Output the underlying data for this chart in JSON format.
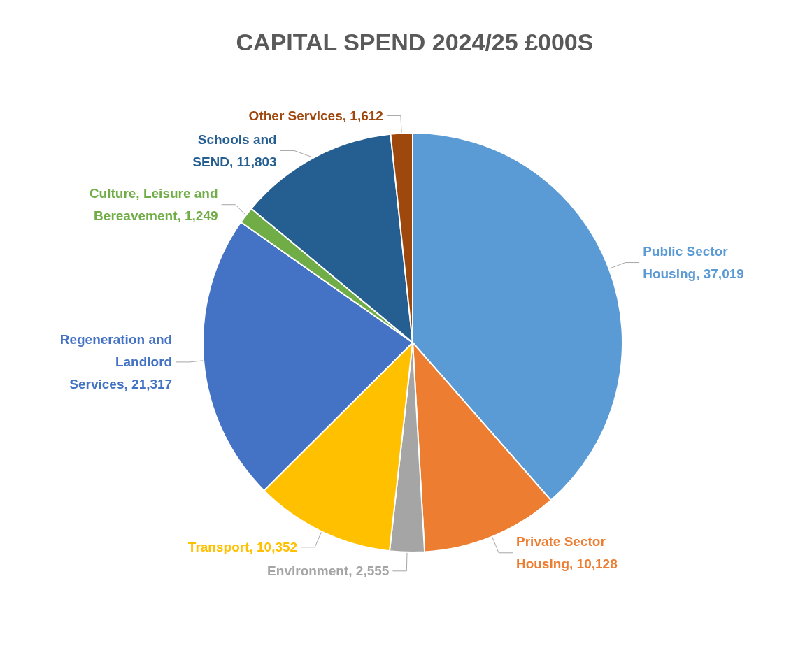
{
  "chart_data": {
    "type": "pie",
    "title": "CAPITAL SPEND 2024/25 £000S",
    "categories": [
      "Public Sector Housing",
      "Private Sector Housing",
      "Environment",
      "Transport",
      "Regeneration and Landlord Services",
      "Culture, Leisure and Bereavement",
      "Schools and SEND",
      "Other Services"
    ],
    "values": [
      37019,
      10128,
      2555,
      10352,
      21317,
      1249,
      11803,
      1612
    ],
    "value_labels": [
      "37,019",
      "10,128",
      "2,555",
      "10,352",
      "21,317",
      "1,249",
      "11,803",
      "1,612"
    ],
    "colors": [
      "#5b9bd5",
      "#ed7d31",
      "#a5a5a5",
      "#ffc000",
      "#4472c4",
      "#70ad47",
      "#255e91",
      "#9e480e"
    ],
    "data_labels": true,
    "legend": false
  }
}
